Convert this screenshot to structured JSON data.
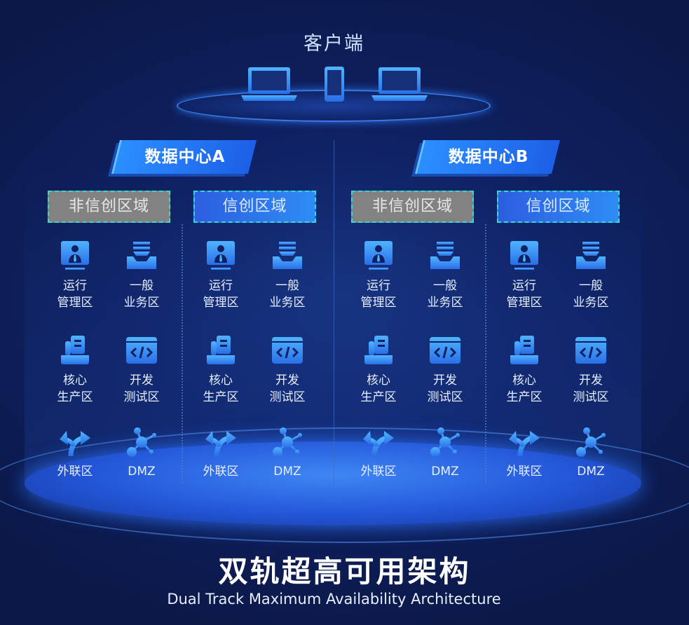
{
  "client": {
    "title": "客户端",
    "devices": [
      "laptop-icon",
      "phone-icon",
      "laptop-icon"
    ]
  },
  "data_centers": [
    {
      "title": "数据中心A",
      "zones": [
        {
          "label": "非信创区域",
          "style": "gray",
          "items": [
            {
              "icon": "monitor-user-icon",
              "line1": "运行",
              "line2": "管理区"
            },
            {
              "icon": "inbox-tray-icon",
              "line1": "一般",
              "line2": "业务区"
            },
            {
              "icon": "document-tray-icon",
              "line1": "核心",
              "line2": "生产区"
            },
            {
              "icon": "code-window-icon",
              "line1": "开发",
              "line2": "测试区"
            },
            {
              "icon": "fork-arrows-icon",
              "line1": "外联区",
              "line2": ""
            },
            {
              "icon": "network-nodes-icon",
              "line1": "DMZ",
              "line2": ""
            }
          ]
        },
        {
          "label": "信创区域",
          "style": "blue",
          "items": [
            {
              "icon": "monitor-user-icon",
              "line1": "运行",
              "line2": "管理区"
            },
            {
              "icon": "inbox-tray-icon",
              "line1": "一般",
              "line2": "业务区"
            },
            {
              "icon": "document-tray-icon",
              "line1": "核心",
              "line2": "生产区"
            },
            {
              "icon": "code-window-icon",
              "line1": "开发",
              "line2": "测试区"
            },
            {
              "icon": "fork-arrows-icon",
              "line1": "外联区",
              "line2": ""
            },
            {
              "icon": "network-nodes-icon",
              "line1": "DMZ",
              "line2": ""
            }
          ]
        }
      ]
    },
    {
      "title": "数据中心B",
      "zones": [
        {
          "label": "非信创区域",
          "style": "gray",
          "items": [
            {
              "icon": "monitor-user-icon",
              "line1": "运行",
              "line2": "管理区"
            },
            {
              "icon": "inbox-tray-icon",
              "line1": "一般",
              "line2": "业务区"
            },
            {
              "icon": "document-tray-icon",
              "line1": "核心",
              "line2": "生产区"
            },
            {
              "icon": "code-window-icon",
              "line1": "开发",
              "line2": "测试区"
            },
            {
              "icon": "fork-arrows-icon",
              "line1": "外联区",
              "line2": ""
            },
            {
              "icon": "network-nodes-icon",
              "line1": "DMZ",
              "line2": ""
            }
          ]
        },
        {
          "label": "信创区域",
          "style": "blue",
          "items": [
            {
              "icon": "monitor-user-icon",
              "line1": "运行",
              "line2": "管理区"
            },
            {
              "icon": "inbox-tray-icon",
              "line1": "一般",
              "line2": "业务区"
            },
            {
              "icon": "document-tray-icon",
              "line1": "核心",
              "line2": "生产区"
            },
            {
              "icon": "code-window-icon",
              "line1": "开发",
              "line2": "测试区"
            },
            {
              "icon": "fork-arrows-icon",
              "line1": "外联区",
              "line2": ""
            },
            {
              "icon": "network-nodes-icon",
              "line1": "DMZ",
              "line2": ""
            }
          ]
        }
      ]
    }
  ],
  "title": "双轨超高可用架构",
  "subtitle": "Dual Track Maximum Availability Architecture",
  "colors": {
    "accent": "#2b8fff",
    "gray_zone": "#828282",
    "dashed_border": "#37d8d0"
  }
}
